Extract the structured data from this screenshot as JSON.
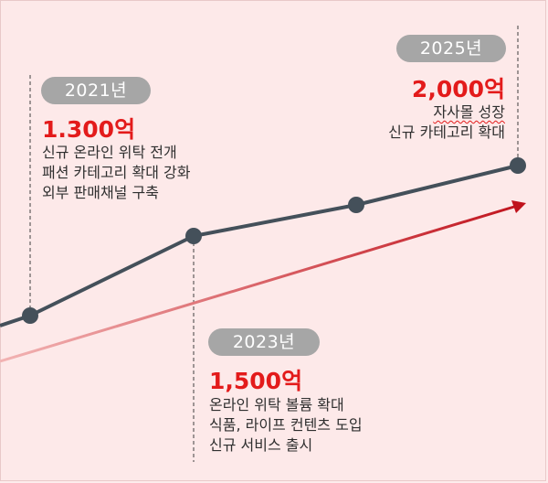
{
  "milestones": [
    {
      "year": "2021년",
      "amount": "1.300억",
      "lines": [
        "신규 온라인 위탁 전개",
        "패션 카테고리 확대 강화",
        "외부 판매채널 구축"
      ]
    },
    {
      "year": "2023년",
      "amount": "1,500억",
      "lines": [
        "온라인 위탁 볼륨 확대",
        "식품, 라이프 컨텐츠 도입",
        "신규 서비스 출시"
      ]
    },
    {
      "year": "2025년",
      "amount": "2,000억",
      "lines": [
        "자사몰 성장",
        "신규 카테고리 확대"
      ]
    }
  ],
  "colors": {
    "background": "#fde9e9",
    "line": "#44505a",
    "trend_arrow": "#c0121c",
    "amount": "#e31b1b",
    "pill": "#a6a6a6"
  }
}
